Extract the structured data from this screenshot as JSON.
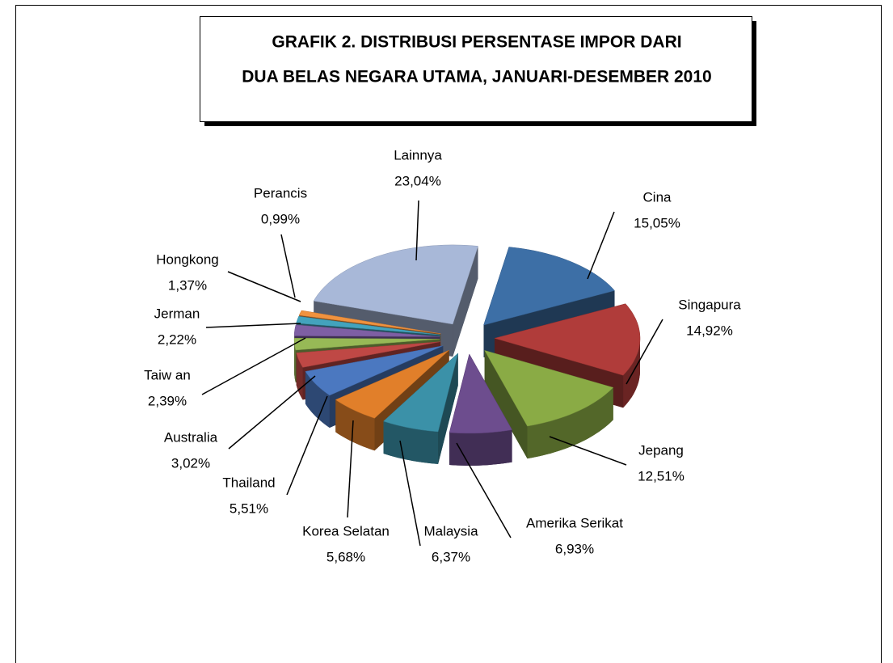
{
  "chart_data": {
    "type": "pie",
    "title": [
      "GRAFIK 2. DISTRIBUSI  PERSENTASE IMPOR DARI",
      "DUA BELAS NEGARA UTAMA, JANUARI-DESEMBER 2010"
    ],
    "categories": [
      "Cina",
      "Singapura",
      "Jepang",
      "Amerika Serikat",
      "Malaysia",
      "Korea Selatan",
      "Thailand",
      "Australia",
      "Taiw an",
      "Jerman",
      "Hongkong",
      "Perancis",
      "Lainnya"
    ],
    "values": [
      15.05,
      14.92,
      12.51,
      6.93,
      6.37,
      5.68,
      5.51,
      3.02,
      2.39,
      2.22,
      1.37,
      0.99,
      23.04
    ],
    "value_labels": [
      "15,05%",
      "14,92%",
      "12,51%",
      "6,93%",
      "6,37%",
      "5,68%",
      "5,51%",
      "3,02%",
      "2,39%",
      "2,22%",
      "1,37%",
      "0,99%",
      "23,04%"
    ],
    "colors": [
      "#3d6fa6",
      "#b03c3a",
      "#8aab45",
      "#6d4d8e",
      "#3b91a8",
      "#e17f2a",
      "#4b78c0",
      "#bf4845",
      "#97b956",
      "#7e5fa4",
      "#43a3bd",
      "#f0923e",
      "#a8b8d8"
    ]
  }
}
